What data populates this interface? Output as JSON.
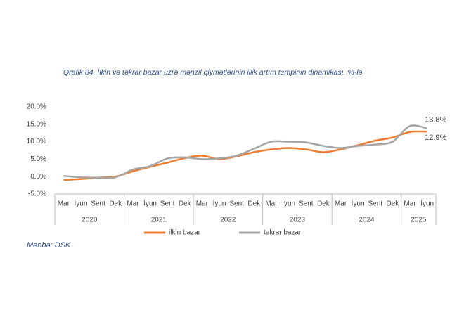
{
  "chart_data": {
    "type": "line",
    "title": "Qrafik 84. İlkin və təkrar bazar üzrə mənzil qiymətlərinin illik artım tempinin dinamikası, %-lə",
    "groups": [
      {
        "label": "2020",
        "categories": [
          "Mar",
          "İyun",
          "Sent",
          "Dek"
        ]
      },
      {
        "label": "2021",
        "categories": [
          "Mar",
          "İyun",
          "Sent",
          "Dek"
        ]
      },
      {
        "label": "2022",
        "categories": [
          "Mar",
          "İyun",
          "Sent",
          "Dek"
        ]
      },
      {
        "label": "2023",
        "categories": [
          "Mar",
          "İyun",
          "Sent",
          "Dek"
        ]
      },
      {
        "label": "2024",
        "categories": [
          "Mar",
          "İyun",
          "Sent",
          "Dek"
        ]
      },
      {
        "label": "2025",
        "categories": [
          "Mar",
          "İyun"
        ]
      }
    ],
    "series": [
      {
        "name": "ilkin bazar",
        "color": "#ed7d31",
        "values": [
          -1.0,
          -0.7,
          -0.3,
          0.0,
          1.5,
          2.8,
          4.0,
          5.3,
          6.0,
          5.0,
          5.8,
          7.0,
          7.8,
          8.2,
          7.8,
          7.0,
          7.8,
          9.0,
          10.3,
          11.2,
          12.8,
          12.9
        ],
        "value_labels": [
          null,
          null,
          null,
          null,
          null,
          null,
          null,
          null,
          null,
          null,
          null,
          null,
          null,
          null,
          null,
          null,
          null,
          null,
          null,
          null,
          null,
          "12.9%"
        ]
      },
      {
        "name": "təkrar bazar",
        "color": "#a5a5a5",
        "values": [
          0.2,
          -0.2,
          -0.3,
          -0.2,
          2.0,
          3.0,
          5.2,
          5.5,
          5.0,
          5.2,
          6.0,
          8.0,
          10.0,
          10.0,
          9.8,
          8.8,
          8.2,
          8.8,
          9.2,
          10.0,
          14.5,
          13.8
        ],
        "value_labels": [
          null,
          null,
          null,
          null,
          null,
          null,
          null,
          null,
          null,
          null,
          null,
          null,
          null,
          null,
          null,
          null,
          null,
          null,
          null,
          null,
          null,
          "13.8%"
        ]
      }
    ],
    "ylim": [
      -5,
      20
    ],
    "yticks": [
      {
        "value": -5,
        "label": "-5.0%"
      },
      {
        "value": 0,
        "label": "0.0%"
      },
      {
        "value": 5,
        "label": "5.0%"
      },
      {
        "value": 10,
        "label": "10.0%"
      },
      {
        "value": 15,
        "label": "15.0%"
      },
      {
        "value": 20,
        "label": "20.0%"
      }
    ],
    "grid": false,
    "legend": "bottom",
    "source": "Mənbə: DSK"
  }
}
